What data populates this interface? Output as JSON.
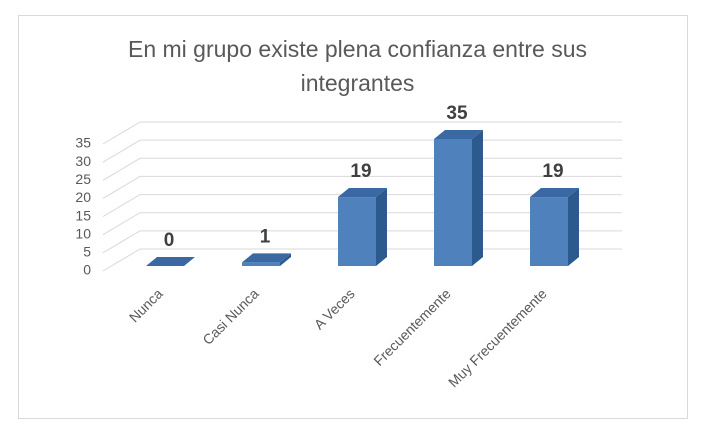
{
  "chart_data": {
    "type": "bar3d",
    "title": "En mi grupo existe plena confianza entre sus integrantes",
    "categories": [
      "Nunca",
      "Casi Nunca",
      "A Veces",
      "Frecuentemente",
      "Muy Frecuentemente"
    ],
    "values": [
      0,
      1,
      19,
      35,
      19
    ],
    "color": "#4f81bd",
    "ylim": [
      0,
      35
    ],
    "yticks": [
      0,
      5,
      10,
      15,
      20,
      25,
      30,
      35
    ],
    "grid": true
  }
}
